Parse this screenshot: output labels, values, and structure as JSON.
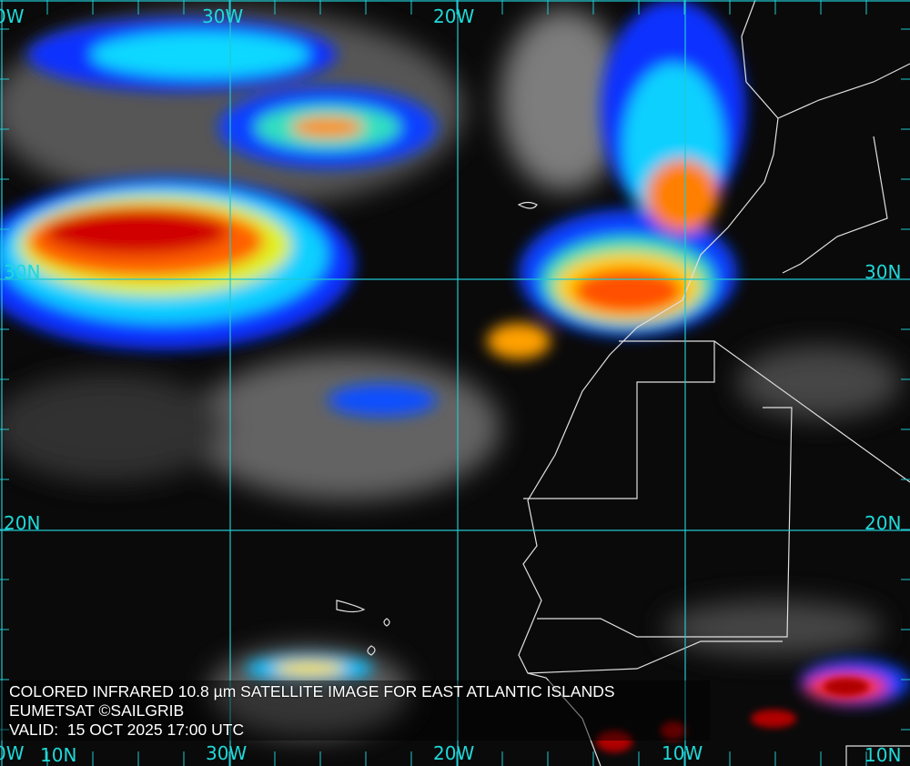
{
  "caption": {
    "title": "COLORED INFRARED 10.8 µm SATELLITE IMAGE FOR EAST ATLANTIC ISLANDS",
    "credit": "EUMETSAT ©SAILGRIB",
    "valid": "VALID:  15 OCT 2025 17:00 UTC"
  },
  "grid": {
    "color": "#20d8d8",
    "longitude_labels_top": [
      "0W",
      "30W",
      "20W"
    ],
    "longitude_labels_bottom": [
      "0W",
      "30W",
      "20W",
      "10W"
    ],
    "latitude_labels_left": [
      "30N",
      "20N",
      "10N"
    ],
    "latitude_labels_right": [
      "30N",
      "20N",
      "10N"
    ]
  },
  "colors": {
    "coastline": "#e0e0e0",
    "cold_cloud_scale": [
      "#0000ff",
      "#00c0ff",
      "#00ffa0",
      "#ffff00",
      "#ff8000",
      "#e00000",
      "#800000"
    ]
  }
}
